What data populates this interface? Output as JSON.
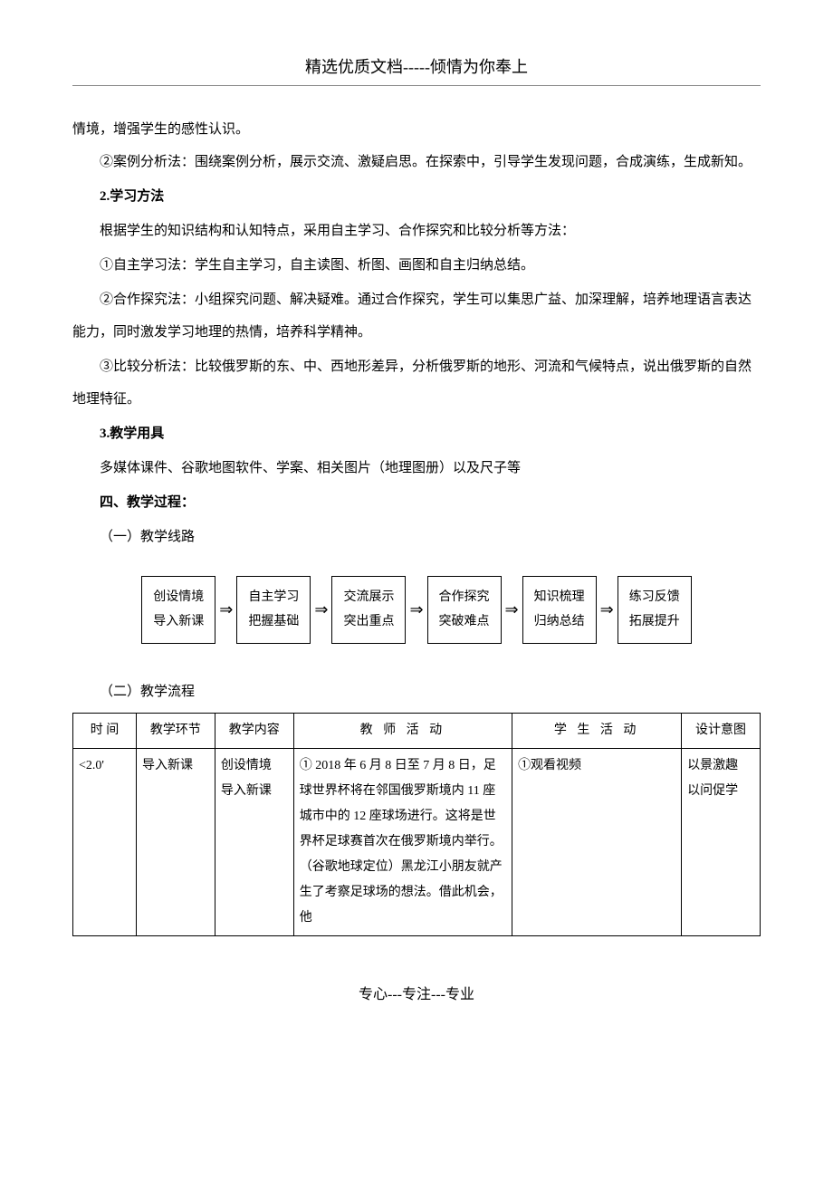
{
  "header": {
    "title": "精选优质文档-----倾情为你奉上"
  },
  "paragraphs": {
    "p1": "情境，增强学生的感性认识。",
    "p2": "②案例分析法：围绕案例分析，展示交流、激疑启思。在探索中，引导学生发现问题，合成演练，生成新知。",
    "h1": "2.学习方法",
    "p3": "根据学生的知识结构和认知特点，采用自主学习、合作探究和比较分析等方法：",
    "p4": "①自主学习法：学生自主学习，自主读图、析图、画图和自主归纳总结。",
    "p5": "②合作探究法：小组探究问题、解决疑难。通过合作探究，学生可以集思广益、加深理解，培养地理语言表达能力，同时激发学习地理的热情，培养科学精神。",
    "p6": "③比较分析法：比较俄罗斯的东、中、西地形差异，分析俄罗斯的地形、河流和气候特点，说出俄罗斯的自然地理特征。",
    "h2": "3.教学用具",
    "p7": "多媒体课件、谷歌地图软件、学案、相关图片（地理图册）以及尺子等",
    "h3": "四、教学过程：",
    "p8": "（一）教学线路",
    "p9": "（二）教学流程"
  },
  "flowchart": {
    "arrow": "⇒",
    "boxes": [
      {
        "line1": "创设情境",
        "line2": "导入新课"
      },
      {
        "line1": "自主学习",
        "line2": "把握基础"
      },
      {
        "line1": "交流展示",
        "line2": "突出重点"
      },
      {
        "line1": "合作探究",
        "line2": "突破难点"
      },
      {
        "line1": "知识梳理",
        "line2": "归纳总结"
      },
      {
        "line1": "练习反馈",
        "line2": "拓展提升"
      }
    ]
  },
  "table": {
    "headers": {
      "time": "时 间",
      "phase": "教学环节",
      "content": "教学内容",
      "teacher": "教 师 活 动",
      "student": "学 生 活 动",
      "design": "设计意图"
    },
    "row1": {
      "time": "<2.0'",
      "phase": "导入新课",
      "content_l1": "创设情境",
      "content_l2": "导入新课",
      "teacher": "① 2018 年 6 月 8 日至 7 月 8 日，足球世界杯将在邻国俄罗斯境内 11 座城市中的 12 座球场进行。这将是世界杯足球赛首次在俄罗斯境内举行。（谷歌地球定位）黑龙江小朋友就产生了考察足球场的想法。借此机会，他",
      "student": "①观看视频",
      "design_l1": "以景激趣",
      "design_l2": "以问促学"
    }
  },
  "footer": {
    "text": "专心---专注---专业"
  }
}
